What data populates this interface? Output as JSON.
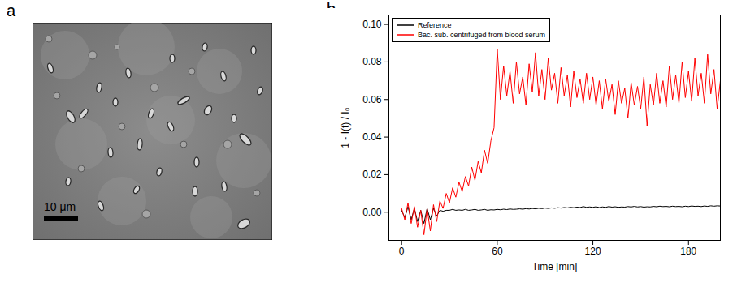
{
  "image_panel": {
    "letter": "a",
    "scale_bar_label": "10 μm"
  },
  "chart_panel_letter": "b",
  "chart_data": {
    "type": "line",
    "x_label": "Time [min]",
    "y_label": "1 - I(t) / I₀",
    "x": [
      0,
      2,
      4,
      6,
      8,
      10,
      12,
      14,
      16,
      18,
      20,
      22,
      24,
      26,
      28,
      30,
      32,
      34,
      36,
      38,
      40,
      42,
      44,
      46,
      48,
      50,
      52,
      54,
      56,
      58,
      60,
      62,
      64,
      66,
      68,
      70,
      72,
      74,
      76,
      78,
      80,
      82,
      84,
      86,
      88,
      90,
      92,
      94,
      96,
      98,
      100,
      102,
      104,
      106,
      108,
      110,
      112,
      114,
      116,
      118,
      120,
      122,
      124,
      126,
      128,
      130,
      132,
      134,
      136,
      138,
      140,
      142,
      144,
      146,
      148,
      150,
      152,
      154,
      156,
      158,
      160,
      162,
      164,
      166,
      168,
      170,
      172,
      174,
      176,
      178,
      180,
      182,
      184,
      186,
      188,
      190,
      192,
      194,
      196,
      198,
      200
    ],
    "series": [
      {
        "name": "Reference",
        "color": "#000000",
        "values": [
          0.001,
          -0.003,
          0.003,
          -0.004,
          0.002,
          -0.005,
          0.001,
          -0.006,
          0.002,
          -0.004,
          0.002,
          -0.002,
          0.001,
          0.0005,
          0.001,
          0.001,
          0.0015,
          0.001,
          0.0012,
          0.001,
          0.0015,
          0.001,
          0.0012,
          0.0015,
          0.001,
          0.0012,
          0.0015,
          0.001,
          0.0013,
          0.0012,
          0.0015,
          0.0013,
          0.0016,
          0.0014,
          0.0017,
          0.0015,
          0.0016,
          0.0018,
          0.0016,
          0.0019,
          0.0017,
          0.002,
          0.0018,
          0.0021,
          0.0019,
          0.0022,
          0.002,
          0.0023,
          0.0021,
          0.0024,
          0.0022,
          0.0025,
          0.0023,
          0.0026,
          0.0024,
          0.0027,
          0.0025,
          0.003,
          0.0026,
          0.0028,
          0.0026,
          0.0029,
          0.0025,
          0.0028,
          0.0026,
          0.003,
          0.0027,
          0.0029,
          0.0026,
          0.0028,
          0.0027,
          0.003,
          0.0028,
          0.0031,
          0.0028,
          0.003,
          0.0027,
          0.0029,
          0.0028,
          0.0031,
          0.0029,
          0.0032,
          0.003,
          0.0031,
          0.0029,
          0.0032,
          0.003,
          0.0031,
          0.0029,
          0.0032,
          0.003,
          0.0033,
          0.0031,
          0.0032,
          0.003,
          0.0033,
          0.0031,
          0.0034,
          0.0032,
          0.0034,
          0.0033
        ]
      },
      {
        "name": "Bac. sub. centrifuged from blood serum",
        "color": "#ff0000",
        "values": [
          0.002,
          -0.004,
          0.005,
          -0.006,
          0.003,
          -0.008,
          0.001,
          -0.012,
          0.002,
          -0.01,
          0.004,
          -0.005,
          0.006,
          0.002,
          0.01,
          0.005,
          0.013,
          0.008,
          0.016,
          0.011,
          0.019,
          0.014,
          0.024,
          0.017,
          0.027,
          0.021,
          0.033,
          0.026,
          0.038,
          0.045,
          0.087,
          0.06,
          0.078,
          0.062,
          0.075,
          0.058,
          0.08,
          0.063,
          0.072,
          0.057,
          0.079,
          0.064,
          0.085,
          0.062,
          0.076,
          0.06,
          0.082,
          0.065,
          0.074,
          0.058,
          0.077,
          0.062,
          0.073,
          0.056,
          0.075,
          0.061,
          0.071,
          0.058,
          0.074,
          0.06,
          0.072,
          0.057,
          0.07,
          0.055,
          0.071,
          0.059,
          0.068,
          0.052,
          0.07,
          0.058,
          0.066,
          0.05,
          0.069,
          0.057,
          0.067,
          0.055,
          0.072,
          0.046,
          0.068,
          0.057,
          0.074,
          0.058,
          0.07,
          0.056,
          0.078,
          0.06,
          0.073,
          0.058,
          0.08,
          0.061,
          0.075,
          0.059,
          0.082,
          0.062,
          0.074,
          0.058,
          0.084,
          0.063,
          0.076,
          0.055,
          0.07
        ]
      }
    ],
    "xlim": [
      -8,
      200
    ],
    "ylim": [
      -0.015,
      0.105
    ],
    "xticks": [
      0,
      60,
      120,
      180
    ],
    "yticks": [
      {
        "value": 0,
        "label": "0.00"
      },
      {
        "value": 0.02,
        "label": "0.02"
      },
      {
        "value": 0.04,
        "label": "0.04"
      },
      {
        "value": 0.06,
        "label": "0.06"
      },
      {
        "value": 0.08,
        "label": "0.08"
      },
      {
        "value": 0.1,
        "label": "0.10"
      }
    ],
    "legend": "upper left"
  }
}
